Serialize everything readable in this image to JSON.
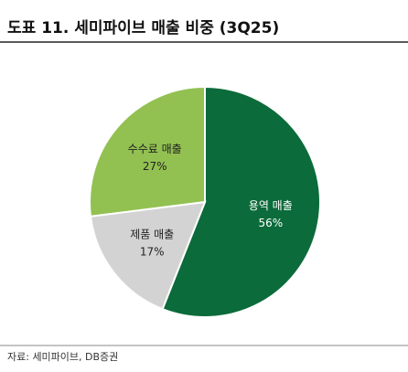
{
  "chart_data": {
    "type": "pie",
    "title": "도표 11. 세미파이브 매출 비중 (3Q25)",
    "categories": [
      "용역 매출",
      "제품 매출",
      "수수료 매출"
    ],
    "values": [
      56,
      17,
      27
    ],
    "value_labels": [
      "56%",
      "17%",
      "27%"
    ],
    "colors": [
      "#0b6b3a",
      "#d3d3d3",
      "#92c152"
    ],
    "source": "자료: 세미파이브, DB증권"
  }
}
